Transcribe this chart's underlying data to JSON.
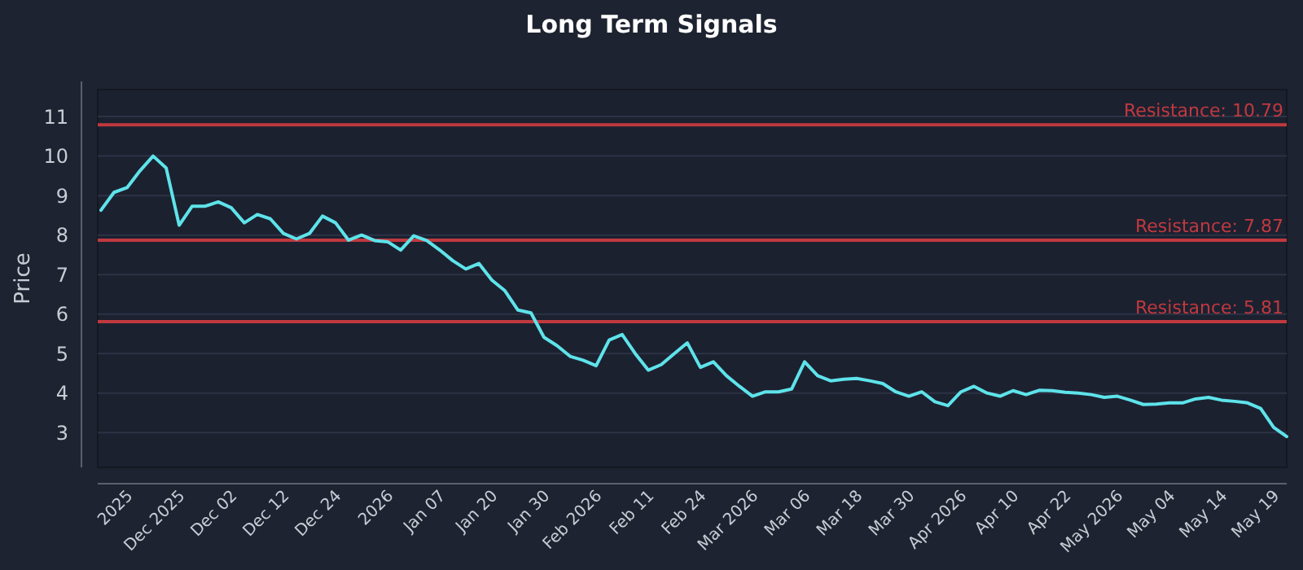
{
  "chart_data": {
    "type": "line",
    "title": "Long Term Signals",
    "ylabel": "Price",
    "categories": [
      null,
      null,
      "2025",
      null,
      null,
      null,
      "Dec 2025",
      null,
      null,
      null,
      "Dec 02",
      null,
      null,
      null,
      "Dec 12",
      null,
      null,
      null,
      "Dec 24",
      null,
      null,
      null,
      "2026",
      null,
      null,
      null,
      "Jan 07",
      null,
      null,
      null,
      "Jan 20",
      null,
      null,
      null,
      "Jan 30",
      null,
      null,
      null,
      "Feb 2026",
      null,
      null,
      null,
      "Feb 11",
      null,
      null,
      null,
      "Feb 24",
      null,
      null,
      null,
      "Mar 2026",
      null,
      null,
      null,
      "Mar 06",
      null,
      null,
      null,
      "Mar 18",
      null,
      null,
      null,
      "Mar 30",
      null,
      null,
      null,
      "Apr 2026",
      null,
      null,
      null,
      "Apr 10",
      null,
      null,
      null,
      "Apr 22",
      null,
      null,
      null,
      "May 2026",
      null,
      null,
      null,
      "May 04",
      null,
      null,
      null,
      "May 14",
      null,
      null,
      null,
      "May 19",
      null
    ],
    "series": [
      {
        "color": "#5ee3ea",
        "values": [
          8.63,
          9.08,
          9.2,
          9.63,
          10.0,
          9.7,
          8.25,
          8.73,
          8.73,
          8.84,
          8.69,
          8.31,
          8.52,
          8.41,
          8.04,
          7.9,
          8.04,
          8.48,
          8.31,
          7.87,
          8.0,
          7.86,
          7.83,
          7.62,
          7.98,
          7.86,
          7.62,
          7.35,
          7.14,
          7.28,
          6.86,
          6.59,
          6.1,
          6.03,
          5.41,
          5.2,
          4.93,
          4.83,
          4.69,
          5.34,
          5.48,
          5.0,
          4.58,
          4.72,
          5.0,
          5.27,
          4.65,
          4.79,
          4.44,
          4.17,
          3.92,
          4.03,
          4.03,
          4.1,
          4.79,
          4.44,
          4.31,
          4.35,
          4.37,
          4.31,
          4.24,
          4.03,
          3.92,
          4.03,
          3.78,
          3.68,
          4.03,
          4.17,
          4.0,
          3.92,
          4.06,
          3.96,
          4.07,
          4.06,
          4.02,
          4.0,
          3.96,
          3.89,
          3.92,
          3.82,
          3.71,
          3.72,
          3.75,
          3.75,
          3.85,
          3.89,
          3.82,
          3.79,
          3.75,
          3.61,
          3.13,
          2.9
        ]
      }
    ],
    "ylim": [
      2.2,
      11.6
    ],
    "yticks": [
      3,
      4,
      5,
      6,
      7,
      8,
      9,
      10,
      11
    ],
    "grid": "y",
    "line_style": "solid",
    "ref_lines": [
      {
        "axis": "y",
        "value": 10.79,
        "label": "Resistance: 10.79",
        "color": "#c0393f"
      },
      {
        "axis": "y",
        "value": 7.87,
        "label": "Resistance: 7.87",
        "color": "#c0393f"
      },
      {
        "axis": "y",
        "value": 5.81,
        "label": "Resistance: 5.81",
        "color": "#c0393f"
      }
    ]
  }
}
